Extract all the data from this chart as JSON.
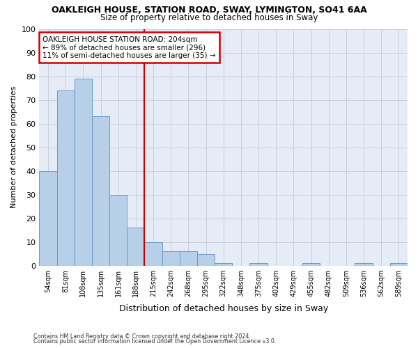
{
  "title": "OAKLEIGH HOUSE, STATION ROAD, SWAY, LYMINGTON, SO41 6AA",
  "subtitle": "Size of property relative to detached houses in Sway",
  "xlabel": "Distribution of detached houses by size in Sway",
  "ylabel": "Number of detached properties",
  "bar_labels": [
    "54sqm",
    "81sqm",
    "108sqm",
    "135sqm",
    "161sqm",
    "188sqm",
    "215sqm",
    "242sqm",
    "268sqm",
    "295sqm",
    "322sqm",
    "348sqm",
    "375sqm",
    "402sqm",
    "429sqm",
    "455sqm",
    "482sqm",
    "509sqm",
    "536sqm",
    "562sqm",
    "589sqm"
  ],
  "bar_values": [
    40,
    74,
    79,
    63,
    30,
    16,
    10,
    6,
    6,
    5,
    1,
    0,
    1,
    0,
    0,
    1,
    0,
    0,
    1,
    0,
    1
  ],
  "bar_color": "#b8cfe8",
  "bar_edgecolor": "#6699cc",
  "ref_line_label": "OAKLEIGH HOUSE STATION ROAD: 204sqm",
  "ref_line_sub1": "← 89% of detached houses are smaller (296)",
  "ref_line_sub2": "11% of semi-detached houses are larger (35) →",
  "annotation_box_color": "#cc0000",
  "vline_color": "#cc0000",
  "ylim": [
    0,
    100
  ],
  "yticks": [
    0,
    10,
    20,
    30,
    40,
    50,
    60,
    70,
    80,
    90,
    100
  ],
  "grid_color": "#c8d0de",
  "bg_color": "#e6ecf5",
  "footer1": "Contains HM Land Registry data © Crown copyright and database right 2024.",
  "footer2": "Contains public sector information licensed under the Open Government Licence v3.0."
}
